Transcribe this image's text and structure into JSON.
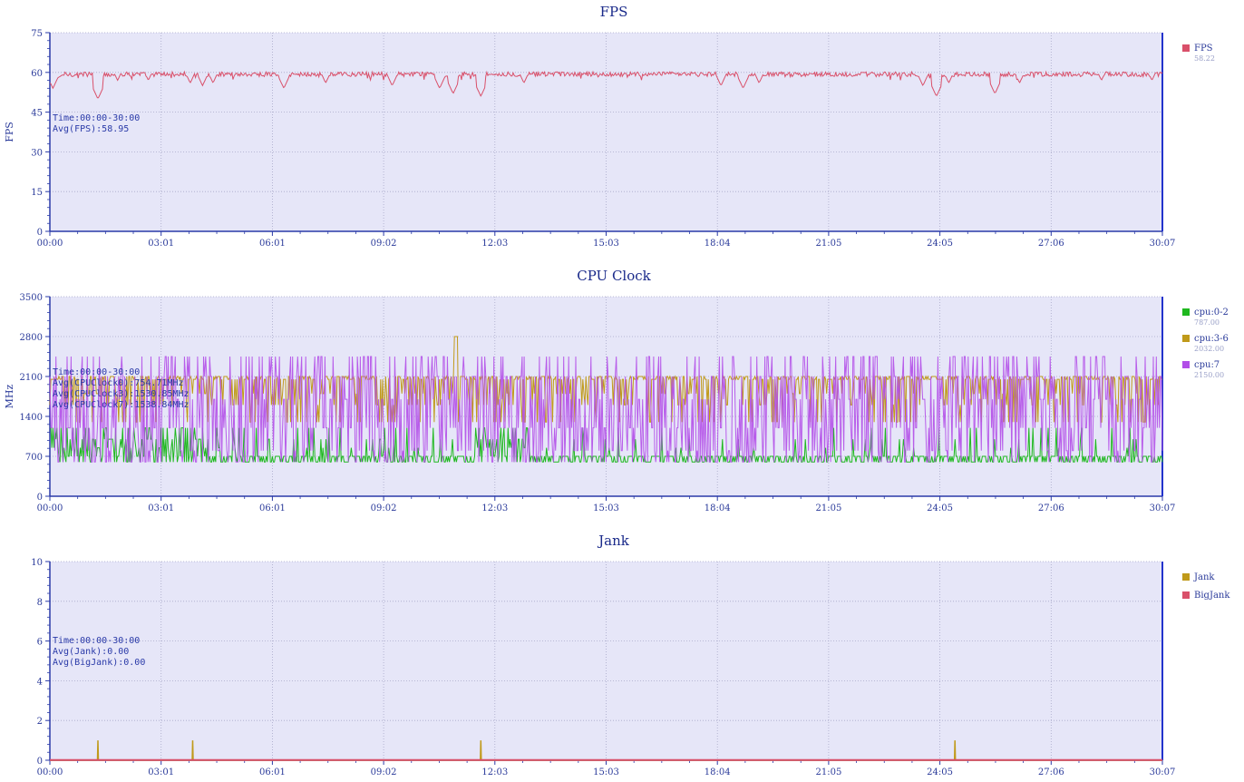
{
  "chart_data": [
    {
      "id": "fps",
      "type": "line",
      "title": "FPS",
      "ylabel": "FPS",
      "ylim": [
        0,
        75
      ],
      "yticks": [
        0,
        15,
        30,
        45,
        60,
        75
      ],
      "xlim_seconds": [
        0,
        1807
      ],
      "xticks": [
        "00:00",
        "03:01",
        "06:01",
        "09:02",
        "12:03",
        "15:03",
        "18:04",
        "21:05",
        "24:05",
        "27:06",
        "30:07"
      ],
      "grid": true,
      "legend_position": "right",
      "info_lines": [
        "Time:00:00-30:00",
        "Avg(FPS):58.95"
      ],
      "series": [
        {
          "name": "FPS",
          "legend_value": "58.22",
          "color": "#d9506a",
          "profile": {
            "baseline": 59.3,
            "noise": 0.9,
            "floor": 57
          },
          "dips": [
            [
              5,
              54
            ],
            [
              78,
              50
            ],
            [
              110,
              57
            ],
            [
              160,
              57
            ],
            [
              228,
              56
            ],
            [
              248,
              55
            ],
            [
              265,
              56
            ],
            [
              380,
              54
            ],
            [
              448,
              56
            ],
            [
              556,
              55
            ],
            [
              633,
              54
            ],
            [
              655,
              52
            ],
            [
              700,
              51
            ],
            [
              770,
              56
            ],
            [
              1090,
              55
            ],
            [
              1126,
              54
            ],
            [
              1152,
              56
            ],
            [
              1418,
              55
            ],
            [
              1440,
              51
            ],
            [
              1460,
              56
            ],
            [
              1536,
              57
            ],
            [
              1535,
              52
            ],
            [
              1575,
              56
            ],
            [
              1708,
              57
            ],
            [
              1790,
              57
            ]
          ]
        }
      ]
    },
    {
      "id": "cpu",
      "type": "line",
      "title": "CPU Clock",
      "ylabel": "MHz",
      "ylim": [
        0,
        3500
      ],
      "yticks": [
        0,
        700,
        1400,
        2100,
        2800,
        3500
      ],
      "xlim_seconds": [
        0,
        1807
      ],
      "xticks": [
        "00:00",
        "03:01",
        "06:01",
        "09:02",
        "12:03",
        "15:03",
        "18:04",
        "21:05",
        "24:05",
        "27:06",
        "30:07"
      ],
      "grid": true,
      "legend_position": "right",
      "info_lines": [
        "Time:00:00-30:00",
        "Avg(CPUClock0):754.71MHz",
        "Avg(CPUClock3):1530.85MHz",
        "Avg(CPUClock7):1538.84MHz"
      ],
      "series": [
        {
          "name": "cpu:0-2",
          "legend_value": "787.00",
          "color": "#1fb81f",
          "profile": {
            "base": 600,
            "levels": [
              600,
              700,
              850,
              1000,
              1200
            ],
            "spike_prob": 0.12
          }
        },
        {
          "name": "cpu:3-6",
          "legend_value": "2032.00",
          "color": "#c09a1a",
          "profile": {
            "base": 2050,
            "levels": [
              1300,
              1600,
              1800,
              2050,
              2100
            ],
            "peak": [
              660,
              2800
            ]
          }
        },
        {
          "name": "cpu:7",
          "legend_value": "2150.00",
          "color": "#b24ee8",
          "profile": {
            "base": 2100,
            "levels": [
              600,
              800,
              1200,
              1700,
              2100,
              2450
            ]
          }
        }
      ]
    },
    {
      "id": "jank",
      "type": "bar",
      "title": "Jank",
      "ylabel": "",
      "ylim": [
        0,
        10
      ],
      "yticks": [
        0,
        2,
        4,
        6,
        8,
        10
      ],
      "xlim_seconds": [
        0,
        1807
      ],
      "xticks": [
        "00:00",
        "03:01",
        "06:01",
        "09:02",
        "12:03",
        "15:03",
        "18:04",
        "21:05",
        "24:05",
        "27:06",
        "30:07"
      ],
      "grid": true,
      "legend_position": "right",
      "info_lines": [
        "Time:00:00-30:00",
        "Avg(Jank):0.00",
        "Avg(BigJank):0.00"
      ],
      "series": [
        {
          "name": "Jank",
          "color": "#c09a1a",
          "events": [
            [
              78,
              1
            ],
            [
              232,
              1
            ],
            [
              700,
              1
            ],
            [
              1470,
              1
            ]
          ]
        },
        {
          "name": "BigJank",
          "color": "#d9506a",
          "events": []
        }
      ]
    }
  ]
}
